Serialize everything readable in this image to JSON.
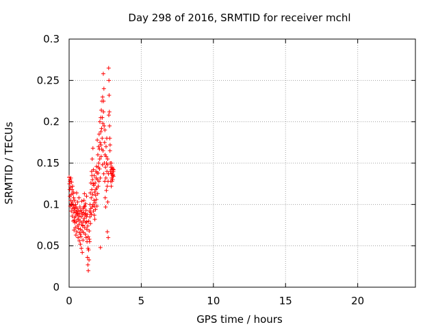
{
  "chart_data": {
    "type": "scatter",
    "title": "Day 298 of 2016, SRMTID for receiver mchl",
    "xlabel": "GPS time / hours",
    "ylabel": "SRMTID / TECUs",
    "xlim": [
      0,
      24
    ],
    "ylim": [
      0,
      0.3
    ],
    "xticks": [
      "0",
      "5",
      "10",
      "15",
      "20"
    ],
    "yticks": [
      "0",
      "0.05",
      "0.1",
      "0.15",
      "0.2",
      "0.25",
      "0.3"
    ],
    "grid": true,
    "marker": "+",
    "colors": {
      "points": "#ff0000",
      "grid": "#a0a0a0"
    },
    "series": [
      {
        "points": [
          [
            0.0,
            0.133
          ],
          [
            0.02,
            0.125
          ],
          [
            0.04,
            0.118
          ],
          [
            0.05,
            0.11
          ],
          [
            0.07,
            0.13
          ],
          [
            0.08,
            0.098
          ],
          [
            0.1,
            0.121
          ],
          [
            0.11,
            0.105
          ],
          [
            0.12,
            0.132
          ],
          [
            0.14,
            0.112
          ],
          [
            0.15,
            0.092
          ],
          [
            0.17,
            0.127
          ],
          [
            0.18,
            0.099
          ],
          [
            0.2,
            0.118
          ],
          [
            0.21,
            0.086
          ],
          [
            0.22,
            0.103
          ],
          [
            0.24,
            0.122
          ],
          [
            0.25,
            0.095
          ],
          [
            0.27,
            0.113
          ],
          [
            0.28,
            0.08
          ],
          [
            0.3,
            0.099
          ],
          [
            0.31,
            0.108
          ],
          [
            0.33,
            0.09
          ],
          [
            0.34,
            0.069
          ],
          [
            0.35,
            0.096
          ],
          [
            0.37,
            0.084
          ],
          [
            0.38,
            0.105
          ],
          [
            0.4,
            0.078
          ],
          [
            0.41,
            0.093
          ],
          [
            0.43,
            0.072
          ],
          [
            0.44,
            0.1
          ],
          [
            0.46,
            0.086
          ],
          [
            0.47,
            0.063
          ],
          [
            0.49,
            0.091
          ],
          [
            0.5,
            0.079
          ],
          [
            0.52,
            0.114
          ],
          [
            0.53,
            0.067
          ],
          [
            0.55,
            0.088
          ],
          [
            0.56,
            0.095
          ],
          [
            0.57,
            0.074
          ],
          [
            0.59,
            0.103
          ],
          [
            0.6,
            0.082
          ],
          [
            0.62,
            0.06
          ],
          [
            0.63,
            0.092
          ],
          [
            0.65,
            0.071
          ],
          [
            0.66,
            0.086
          ],
          [
            0.68,
            0.108
          ],
          [
            0.69,
            0.076
          ],
          [
            0.71,
            0.056
          ],
          [
            0.72,
            0.089
          ],
          [
            0.74,
            0.066
          ],
          [
            0.75,
            0.097
          ],
          [
            0.76,
            0.08
          ],
          [
            0.78,
            0.052
          ],
          [
            0.79,
            0.07
          ],
          [
            0.81,
            0.093
          ],
          [
            0.82,
            0.061
          ],
          [
            0.84,
            0.085
          ],
          [
            0.85,
            0.047
          ],
          [
            0.87,
            0.078
          ],
          [
            0.88,
            0.104
          ],
          [
            0.9,
            0.068
          ],
          [
            0.91,
            0.042
          ],
          [
            0.93,
            0.088
          ],
          [
            0.94,
            0.074
          ],
          [
            0.96,
            0.057
          ],
          [
            0.97,
            0.095
          ],
          [
            0.99,
            0.08
          ],
          [
            1.0,
            0.066
          ],
          [
            1.02,
            0.09
          ],
          [
            1.03,
            0.105
          ],
          [
            1.05,
            0.083
          ],
          [
            1.06,
            0.113
          ],
          [
            1.08,
            0.072
          ],
          [
            1.09,
            0.098
          ],
          [
            1.11,
            0.087
          ],
          [
            1.12,
            0.064
          ],
          [
            1.14,
            0.101
          ],
          [
            1.15,
            0.078
          ],
          [
            1.17,
            0.093
          ],
          [
            1.18,
            0.06
          ],
          [
            1.2,
            0.085
          ],
          [
            1.21,
            0.11
          ],
          [
            1.23,
            0.07
          ],
          [
            1.24,
            0.055
          ],
          [
            1.26,
            0.088
          ],
          [
            1.27,
            0.036
          ],
          [
            1.29,
            0.074
          ],
          [
            1.3,
            0.027
          ],
          [
            1.32,
            0.061
          ],
          [
            1.33,
            0.02
          ],
          [
            1.35,
            0.045
          ],
          [
            1.36,
            0.08
          ],
          [
            1.38,
            0.033
          ],
          [
            1.39,
            0.068
          ],
          [
            1.41,
            0.092
          ],
          [
            1.42,
            0.055
          ],
          [
            1.44,
            0.085
          ],
          [
            1.45,
            0.1
          ],
          [
            1.47,
            0.114
          ],
          [
            1.48,
            0.077
          ],
          [
            1.5,
            0.095
          ],
          [
            1.51,
            0.126
          ],
          [
            1.53,
            0.108
          ],
          [
            1.54,
            0.088
          ],
          [
            1.56,
            0.14
          ],
          [
            1.57,
            0.118
          ],
          [
            1.59,
            0.097
          ],
          [
            1.6,
            0.155
          ],
          [
            1.62,
            0.13
          ],
          [
            1.63,
            0.112
          ],
          [
            1.65,
            0.168
          ],
          [
            1.66,
            0.1
          ],
          [
            1.68,
            0.142
          ],
          [
            1.69,
            0.092
          ],
          [
            1.71,
            0.123
          ],
          [
            1.72,
            0.105
          ],
          [
            1.74,
            0.135
          ],
          [
            1.75,
            0.087
          ],
          [
            1.77,
            0.115
          ],
          [
            1.78,
            0.082
          ],
          [
            1.8,
            0.102
          ],
          [
            1.81,
            0.126
          ],
          [
            1.83,
            0.094
          ],
          [
            1.84,
            0.111
          ],
          [
            1.86,
            0.14
          ],
          [
            1.87,
            0.132
          ],
          [
            1.89,
            0.106
          ],
          [
            1.9,
            0.146
          ],
          [
            1.92,
            0.12
          ],
          [
            1.93,
            0.098
          ],
          [
            1.95,
            0.178
          ],
          [
            1.96,
            0.13
          ],
          [
            1.98,
            0.113
          ],
          [
            1.99,
            0.16
          ],
          [
            2.01,
            0.138
          ],
          [
            2.02,
            0.122
          ],
          [
            2.04,
            0.17
          ],
          [
            2.05,
            0.15
          ],
          [
            2.07,
            0.128
          ],
          [
            2.08,
            0.185
          ],
          [
            2.1,
            0.167
          ],
          [
            2.11,
            0.143
          ],
          [
            2.13,
            0.2
          ],
          [
            2.14,
            0.175
          ],
          [
            2.16,
            0.132
          ],
          [
            2.17,
            0.048
          ],
          [
            2.19,
            0.205
          ],
          [
            2.2,
            0.188
          ],
          [
            2.22,
            0.158
          ],
          [
            2.23,
            0.214
          ],
          [
            2.25,
            0.192
          ],
          [
            2.26,
            0.167
          ],
          [
            2.28,
            0.225
          ],
          [
            2.29,
            0.18
          ],
          [
            2.31,
            0.148
          ],
          [
            2.32,
            0.23
          ],
          [
            2.34,
            0.198
          ],
          [
            2.35,
            0.165
          ],
          [
            2.37,
            0.258
          ],
          [
            2.38,
            0.212
          ],
          [
            2.4,
            0.137
          ],
          [
            2.41,
            0.24
          ],
          [
            2.43,
            0.195
          ],
          [
            2.44,
            0.15
          ],
          [
            2.46,
            0.175
          ],
          [
            2.47,
            0.128
          ],
          [
            2.49,
            0.16
          ],
          [
            2.5,
            0.108
          ],
          [
            2.52,
            0.145
          ],
          [
            2.53,
            0.097
          ],
          [
            2.55,
            0.132
          ],
          [
            2.56,
            0.17
          ],
          [
            2.58,
            0.117
          ],
          [
            2.59,
            0.15
          ],
          [
            2.61,
            0.18
          ],
          [
            2.62,
            0.14
          ],
          [
            2.64,
            0.122
          ],
          [
            2.65,
            0.067
          ],
          [
            2.67,
            0.155
          ],
          [
            2.68,
            0.103
          ],
          [
            2.7,
            0.128
          ],
          [
            2.71,
            0.06
          ],
          [
            2.73,
            0.137
          ],
          [
            2.74,
            0.265
          ],
          [
            2.76,
            0.25
          ],
          [
            2.77,
            0.232
          ],
          [
            2.79,
            0.212
          ],
          [
            2.8,
            0.195
          ],
          [
            2.82,
            0.18
          ],
          [
            2.83,
            0.165
          ],
          [
            2.85,
            0.15
          ],
          [
            2.86,
            0.14
          ],
          [
            2.88,
            0.128
          ],
          [
            2.89,
            0.145
          ],
          [
            2.91,
            0.137
          ],
          [
            2.92,
            0.122
          ],
          [
            2.94,
            0.142
          ],
          [
            2.95,
            0.132
          ],
          [
            2.97,
            0.128
          ],
          [
            2.98,
            0.145
          ],
          [
            3.0,
            0.138
          ],
          [
            3.01,
            0.13
          ],
          [
            3.03,
            0.143
          ],
          [
            3.04,
            0.136
          ],
          [
            3.06,
            0.14
          ],
          [
            3.07,
            0.134
          ],
          [
            3.08,
            0.142
          ],
          [
            0.06,
            0.128
          ],
          [
            0.16,
            0.101
          ],
          [
            0.29,
            0.115
          ],
          [
            0.36,
            0.081
          ],
          [
            0.48,
            0.097
          ],
          [
            0.58,
            0.089
          ],
          [
            0.67,
            0.082
          ],
          [
            0.77,
            0.064
          ],
          [
            0.86,
            0.091
          ],
          [
            0.95,
            0.075
          ],
          [
            1.04,
            0.097
          ],
          [
            1.13,
            0.089
          ],
          [
            1.22,
            0.079
          ],
          [
            1.31,
            0.047
          ],
          [
            1.4,
            0.058
          ],
          [
            1.49,
            0.09
          ],
          [
            1.58,
            0.135
          ],
          [
            1.67,
            0.125
          ],
          [
            1.76,
            0.098
          ],
          [
            1.85,
            0.118
          ],
          [
            1.94,
            0.138
          ],
          [
            2.03,
            0.145
          ],
          [
            2.12,
            0.155
          ],
          [
            2.21,
            0.172
          ],
          [
            2.3,
            0.205
          ],
          [
            2.39,
            0.225
          ],
          [
            2.48,
            0.19
          ],
          [
            2.57,
            0.158
          ],
          [
            2.66,
            0.148
          ],
          [
            2.75,
            0.208
          ],
          [
            2.84,
            0.172
          ],
          [
            2.93,
            0.15
          ],
          [
            3.02,
            0.135
          ]
        ]
      }
    ]
  }
}
